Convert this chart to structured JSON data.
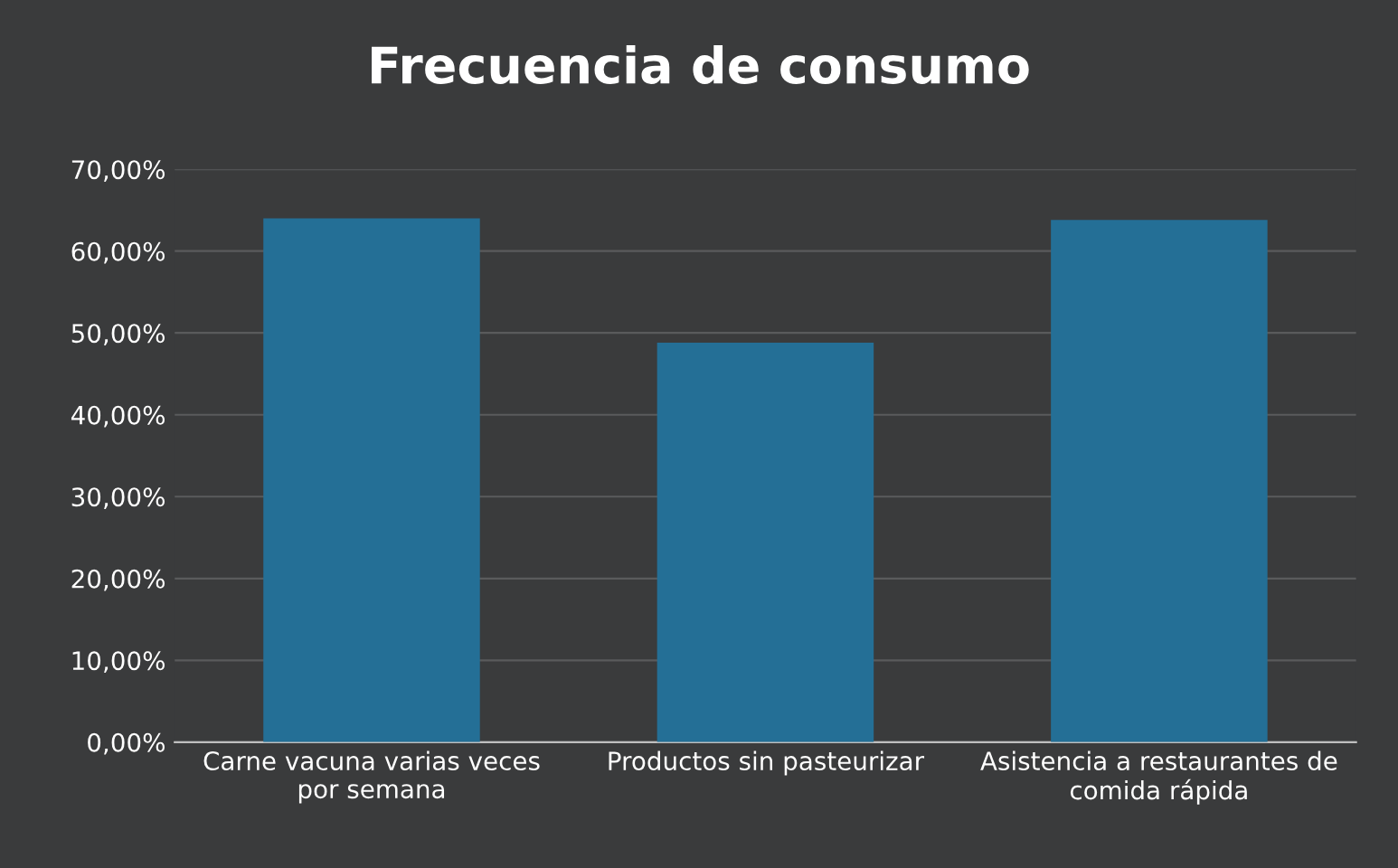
{
  "chart_data": {
    "type": "bar",
    "title": "Frecuencia de consumo",
    "categories": [
      "Carne vacuna varias veces\npor semana",
      "Productos sin pasteurizar",
      "Asistencia a restaurantes de\ncomida rápida"
    ],
    "values": [
      64,
      48.8,
      63.8
    ],
    "color": "#246f96",
    "ylim": [
      0,
      70
    ],
    "yticks": [
      {
        "value": 0,
        "label": "0,00%"
      },
      {
        "value": 10,
        "label": "10,00%"
      },
      {
        "value": 20,
        "label": "20,00%"
      },
      {
        "value": 30,
        "label": "30,00%"
      },
      {
        "value": 40,
        "label": "40,00%"
      },
      {
        "value": 50,
        "label": "50,00%"
      },
      {
        "value": 60,
        "label": "60,00%"
      },
      {
        "value": 70,
        "label": "70,00%"
      }
    ],
    "grid": "y",
    "legend": false
  }
}
